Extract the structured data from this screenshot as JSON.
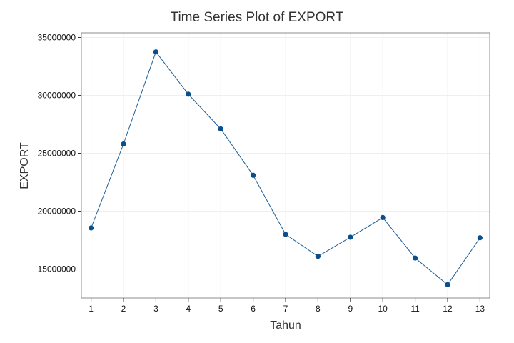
{
  "chart_data": {
    "type": "line",
    "title": "Time Series Plot of EXPORT",
    "xlabel": "Tahun",
    "ylabel": "EXPORT",
    "x": [
      1,
      2,
      3,
      4,
      5,
      6,
      7,
      8,
      9,
      10,
      11,
      12,
      13
    ],
    "series": [
      {
        "values": [
          18550000,
          25800000,
          33750000,
          30100000,
          27100000,
          23100000,
          18000000,
          16100000,
          17750000,
          19450000,
          15950000,
          13650000,
          17700000
        ]
      }
    ],
    "xticks": [
      "1",
      "2",
      "3",
      "4",
      "5",
      "6",
      "7",
      "8",
      "9",
      "10",
      "11",
      "12",
      "13"
    ],
    "yticks": [
      "15000000",
      "20000000",
      "25000000",
      "30000000",
      "35000000"
    ],
    "ytick_values": [
      15000000,
      20000000,
      25000000,
      30000000,
      35000000
    ],
    "xlim": [
      0.7,
      13.3
    ],
    "ylim": [
      12500000,
      35400000
    ],
    "grid": true,
    "markers": true,
    "colors": {
      "line": "#1f5f96",
      "marker": "#0a4f8c",
      "grid": "#efefef",
      "frame": "#8c8c8c"
    }
  }
}
